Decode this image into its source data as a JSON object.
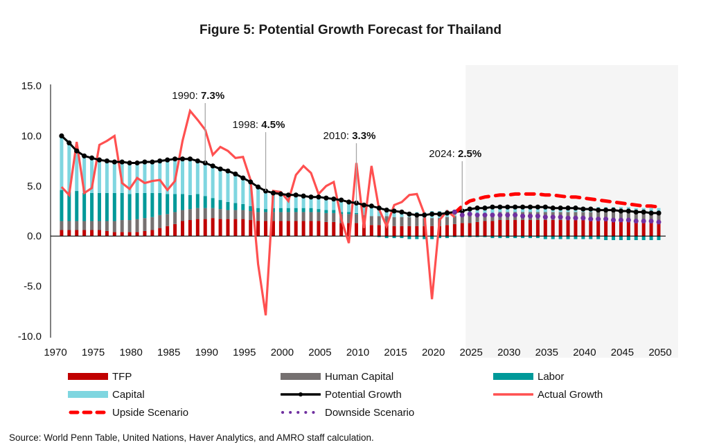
{
  "chart_data": {
    "type": "bar",
    "title": "Figure 5: Potential Growth Forecast for Thailand",
    "xlabel": "",
    "ylabel": "",
    "ylim": [
      -10,
      15
    ],
    "yticks": [
      15,
      10,
      5,
      0,
      -5,
      -10
    ],
    "ytick_labels": [
      "15.0",
      "10.0",
      "5.0",
      "0.0",
      "-5.0",
      "-10.0"
    ],
    "xlim": [
      1970,
      2050
    ],
    "xticks": [
      1970,
      1975,
      1980,
      1985,
      1990,
      1995,
      2000,
      2005,
      2010,
      2015,
      2020,
      2025,
      2030,
      2035,
      2040,
      2045,
      2050
    ],
    "xtick_labels": [
      "1970",
      "1975",
      "1980",
      "1985",
      "1990",
      "1995",
      "2000",
      "2005",
      "2010",
      "2015",
      "2020",
      "2025",
      "2030",
      "2035",
      "2040",
      "2045",
      "2050"
    ],
    "forecast_shading": {
      "from": 2025,
      "to": 2050,
      "color": "#f5f5f5"
    },
    "grid": false,
    "legend_position": "bottom",
    "years": [
      1971,
      1972,
      1973,
      1974,
      1975,
      1976,
      1977,
      1978,
      1979,
      1980,
      1981,
      1982,
      1983,
      1984,
      1985,
      1986,
      1987,
      1988,
      1989,
      1990,
      1991,
      1992,
      1993,
      1994,
      1995,
      1996,
      1997,
      1998,
      1999,
      2000,
      2001,
      2002,
      2003,
      2004,
      2005,
      2006,
      2007,
      2008,
      2009,
      2010,
      2011,
      2012,
      2013,
      2014,
      2015,
      2016,
      2017,
      2018,
      2019,
      2020,
      2021,
      2022,
      2023,
      2024,
      2025,
      2026,
      2027,
      2028,
      2029,
      2030,
      2031,
      2032,
      2033,
      2034,
      2035,
      2036,
      2037,
      2038,
      2039,
      2040,
      2041,
      2042,
      2043,
      2044,
      2045,
      2046,
      2047,
      2048,
      2049,
      2050
    ],
    "series": [
      {
        "name": "TFP",
        "type": "stacked-bar",
        "color": "#c00000",
        "values": [
          0.6,
          0.6,
          0.6,
          0.6,
          0.6,
          0.6,
          0.5,
          0.4,
          0.4,
          0.4,
          0.4,
          0.5,
          0.6,
          0.8,
          1.0,
          1.2,
          1.5,
          1.6,
          1.7,
          1.7,
          1.8,
          1.7,
          1.7,
          1.7,
          1.7,
          1.6,
          1.5,
          1.5,
          1.5,
          1.5,
          1.5,
          1.5,
          1.5,
          1.5,
          1.5,
          1.4,
          1.4,
          1.3,
          1.3,
          1.3,
          1.2,
          1.1,
          1.1,
          1.1,
          1.0,
          1.0,
          1.0,
          1.0,
          1.0,
          1.0,
          1.0,
          1.1,
          1.2,
          1.3,
          1.3,
          1.4,
          1.5,
          1.5,
          1.6,
          1.6,
          1.6,
          1.6,
          1.6,
          1.6,
          1.6,
          1.6,
          1.6,
          1.6,
          1.6,
          1.6,
          1.6,
          1.6,
          1.6,
          1.6,
          1.6,
          1.6,
          1.5,
          1.5,
          1.5,
          1.5
        ]
      },
      {
        "name": "Human Capital",
        "type": "stacked-bar",
        "color": "#767171",
        "values": [
          0.9,
          0.9,
          0.9,
          0.9,
          0.9,
          0.9,
          1.0,
          1.1,
          1.2,
          1.2,
          1.3,
          1.3,
          1.3,
          1.3,
          1.2,
          1.2,
          1.1,
          1.1,
          1.1,
          1.1,
          1.0,
          1.0,
          0.9,
          0.9,
          0.9,
          0.9,
          0.9,
          0.9,
          0.9,
          0.9,
          0.9,
          0.9,
          0.9,
          0.9,
          0.9,
          0.9,
          0.9,
          0.9,
          0.9,
          0.9,
          0.9,
          0.9,
          0.9,
          0.9,
          0.9,
          0.9,
          0.9,
          0.9,
          0.8,
          0.8,
          0.8,
          0.8,
          0.8,
          0.8,
          0.8,
          0.8,
          0.8,
          0.8,
          0.8,
          0.8,
          0.8,
          0.8,
          0.8,
          0.8,
          0.8,
          0.8,
          0.8,
          0.8,
          0.8,
          0.8,
          0.8,
          0.8,
          0.8,
          0.8,
          0.8,
          0.8,
          0.8,
          0.8,
          0.8,
          0.8
        ]
      },
      {
        "name": "Labor",
        "type": "stacked-bar",
        "color": "#009999",
        "values": [
          3.1,
          2.9,
          3.0,
          2.8,
          2.8,
          2.8,
          2.8,
          2.8,
          2.7,
          2.6,
          2.6,
          2.5,
          2.4,
          2.2,
          2.0,
          1.8,
          1.6,
          1.4,
          1.4,
          1.2,
          1.0,
          0.9,
          0.8,
          0.7,
          0.6,
          0.5,
          0.4,
          0.3,
          0.4,
          0.4,
          0.4,
          0.4,
          0.4,
          0.4,
          0.3,
          0.3,
          0.3,
          0.2,
          0.2,
          0.1,
          0.0,
          0.0,
          -0.1,
          -0.2,
          -0.2,
          -0.2,
          -0.3,
          -0.3,
          -0.3,
          -0.3,
          -0.2,
          -0.2,
          -0.1,
          -0.1,
          -0.1,
          -0.1,
          -0.1,
          -0.2,
          -0.2,
          -0.2,
          -0.2,
          -0.2,
          -0.2,
          -0.2,
          -0.3,
          -0.3,
          -0.3,
          -0.3,
          -0.3,
          -0.3,
          -0.3,
          -0.3,
          -0.4,
          -0.4,
          -0.4,
          -0.4,
          -0.4,
          -0.4,
          -0.4,
          -0.4
        ]
      },
      {
        "name": "Capital",
        "type": "stacked-bar",
        "color": "#7fd6e0",
        "values": [
          5.4,
          4.9,
          4.0,
          3.9,
          3.6,
          3.4,
          3.4,
          3.1,
          3.1,
          3.1,
          3.1,
          3.1,
          3.2,
          3.2,
          3.4,
          3.5,
          3.5,
          3.6,
          3.3,
          3.3,
          3.2,
          3.1,
          3.1,
          2.9,
          2.6,
          2.4,
          2.1,
          1.8,
          1.5,
          1.4,
          1.3,
          1.3,
          1.2,
          1.1,
          1.2,
          1.2,
          1.2,
          1.1,
          1.0,
          1.0,
          1.0,
          1.0,
          0.9,
          0.8,
          0.7,
          0.6,
          0.5,
          0.5,
          0.6,
          0.7,
          0.7,
          0.7,
          0.6,
          0.6,
          0.5,
          0.5,
          0.5,
          0.5,
          0.5,
          0.5,
          0.5,
          0.5,
          0.5,
          0.5,
          0.5,
          0.5,
          0.5,
          0.5,
          0.5,
          0.5,
          0.5,
          0.5,
          0.5,
          0.5,
          0.5,
          0.5,
          0.5,
          0.5,
          0.5,
          0.5
        ]
      },
      {
        "name": "Potential Growth",
        "type": "line-marker",
        "color": "#000000",
        "values": [
          10.0,
          9.3,
          8.5,
          8.0,
          7.8,
          7.6,
          7.5,
          7.4,
          7.4,
          7.3,
          7.3,
          7.4,
          7.4,
          7.5,
          7.6,
          7.7,
          7.7,
          7.7,
          7.5,
          7.3,
          7.0,
          6.7,
          6.5,
          6.2,
          5.8,
          5.4,
          4.9,
          4.5,
          4.3,
          4.2,
          4.1,
          4.1,
          4.0,
          3.9,
          3.9,
          3.8,
          3.7,
          3.6,
          3.4,
          3.3,
          3.1,
          3.0,
          2.8,
          2.6,
          2.5,
          2.4,
          2.2,
          2.1,
          2.1,
          2.2,
          2.2,
          2.3,
          2.4,
          2.5,
          2.7,
          2.8,
          2.8,
          2.9,
          2.9,
          2.9,
          2.9,
          2.9,
          2.9,
          2.9,
          2.9,
          2.8,
          2.8,
          2.8,
          2.8,
          2.7,
          2.7,
          2.6,
          2.6,
          2.6,
          2.5,
          2.5,
          2.4,
          2.4,
          2.3,
          2.3
        ]
      },
      {
        "name": "Actual Growth",
        "type": "line",
        "color": "#ff5050",
        "years": [
          1971,
          1972,
          1973,
          1974,
          1975,
          1976,
          1977,
          1978,
          1979,
          1980,
          1981,
          1982,
          1983,
          1984,
          1985,
          1986,
          1987,
          1988,
          1989,
          1990,
          1991,
          1992,
          1993,
          1994,
          1995,
          1996,
          1997,
          1998,
          1999,
          2000,
          2001,
          2002,
          2003,
          2004,
          2005,
          2006,
          2007,
          2008,
          2009,
          2010,
          2011,
          2012,
          2013,
          2014,
          2015,
          2016,
          2017,
          2018,
          2019,
          2020,
          2021,
          2022,
          2023
        ],
        "values": [
          4.9,
          4.1,
          9.4,
          4.3,
          4.8,
          9.1,
          9.5,
          10.0,
          5.3,
          4.7,
          5.8,
          5.3,
          5.5,
          5.6,
          4.6,
          5.5,
          9.5,
          12.5,
          11.6,
          10.6,
          8.1,
          8.9,
          8.5,
          7.8,
          7.9,
          5.6,
          -2.8,
          -7.9,
          4.5,
          4.4,
          3.5,
          6.1,
          7.0,
          6.3,
          4.2,
          5.0,
          5.4,
          1.7,
          -0.7,
          7.3,
          0.8,
          7.0,
          2.7,
          1.0,
          3.1,
          3.4,
          4.1,
          4.2,
          2.2,
          -6.3,
          1.6,
          2.5,
          1.9
        ]
      },
      {
        "name": "Upside Scenario",
        "type": "dashed-line",
        "color": "#ff0000",
        "years": [
          2023,
          2024,
          2025,
          2026,
          2027,
          2028,
          2029,
          2030,
          2031,
          2032,
          2033,
          2034,
          2035,
          2036,
          2037,
          2038,
          2039,
          2040,
          2041,
          2042,
          2043,
          2044,
          2045,
          2046,
          2047,
          2048,
          2049,
          2050
        ],
        "values": [
          2.3,
          3.0,
          3.5,
          3.7,
          3.9,
          4.0,
          4.1,
          4.1,
          4.2,
          4.2,
          4.2,
          4.2,
          4.1,
          4.1,
          4.0,
          3.9,
          3.9,
          3.8,
          3.7,
          3.6,
          3.5,
          3.4,
          3.3,
          3.2,
          3.1,
          3.0,
          3.0,
          2.9
        ]
      },
      {
        "name": "Downside Scenario",
        "type": "dotted-line",
        "color": "#7030a0",
        "years": [
          2023,
          2024,
          2025,
          2026,
          2027,
          2028,
          2029,
          2030,
          2031,
          2032,
          2033,
          2034,
          2035,
          2036,
          2037,
          2038,
          2039,
          2040,
          2041,
          2042,
          2043,
          2044,
          2045,
          2046,
          2047,
          2048,
          2049,
          2050
        ],
        "values": [
          2.4,
          2.1,
          2.2,
          2.1,
          2.1,
          2.1,
          2.1,
          2.1,
          2.1,
          2.0,
          2.0,
          2.0,
          1.9,
          1.9,
          1.9,
          1.8,
          1.8,
          1.8,
          1.7,
          1.7,
          1.7,
          1.6,
          1.6,
          1.6,
          1.5,
          1.5,
          1.5,
          1.4
        ]
      }
    ],
    "annotations": [
      {
        "year": 1990,
        "value": 7.3,
        "prefix": "1990: ",
        "bold": "7.3%"
      },
      {
        "year": 1998,
        "value": 4.5,
        "prefix": "1998: ",
        "bold": "4.5%"
      },
      {
        "year": 2010,
        "value": 3.3,
        "prefix": "2010: ",
        "bold": "3.3%"
      },
      {
        "year": 2024,
        "value": 2.5,
        "prefix": "2024: ",
        "bold": "2.5%"
      }
    ],
    "legend": [
      {
        "label": "TFP",
        "symbol": "bar",
        "color": "#c00000"
      },
      {
        "label": "Human Capital",
        "symbol": "bar",
        "color": "#767171"
      },
      {
        "label": "Labor",
        "symbol": "bar",
        "color": "#009999"
      },
      {
        "label": "Capital",
        "symbol": "bar",
        "color": "#7fd6e0"
      },
      {
        "label": "Potential Growth",
        "symbol": "line-marker",
        "color": "#000000"
      },
      {
        "label": "Actual Growth",
        "symbol": "line",
        "color": "#ff5050"
      },
      {
        "label": "Upside Scenario",
        "symbol": "dashed",
        "color": "#ff0000"
      },
      {
        "label": "Downside Scenario",
        "symbol": "dotted",
        "color": "#7030a0"
      }
    ],
    "source": "Source: World Penn Table, United Nations, Haver Analytics, and AMRO staff calculation."
  }
}
